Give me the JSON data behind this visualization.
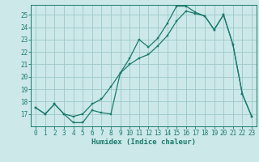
{
  "title": "",
  "xlabel": "Humidex (Indice chaleur)",
  "ylabel": "",
  "bg_color": "#cce8e8",
  "grid_color": "#9dc8c8",
  "line_color": "#1a7a6e",
  "xlim": [
    -0.5,
    23.5
  ],
  "ylim": [
    16.0,
    25.8
  ],
  "yticks": [
    17,
    18,
    19,
    20,
    21,
    22,
    23,
    24,
    25
  ],
  "xticks": [
    0,
    1,
    2,
    3,
    4,
    5,
    6,
    7,
    8,
    9,
    10,
    11,
    12,
    13,
    14,
    15,
    16,
    17,
    18,
    19,
    20,
    21,
    22,
    23
  ],
  "line1_x": [
    0,
    1,
    2,
    3,
    4,
    5,
    6,
    7,
    8,
    9,
    10,
    11,
    12,
    13,
    14,
    15,
    16,
    17,
    18,
    19,
    20,
    21,
    22,
    23
  ],
  "line1_y": [
    17.5,
    17.0,
    17.8,
    17.0,
    16.3,
    16.3,
    17.3,
    17.1,
    17.0,
    20.3,
    21.5,
    23.0,
    22.4,
    23.1,
    24.3,
    25.7,
    25.7,
    25.2,
    24.9,
    23.8,
    25.0,
    22.6,
    18.6,
    16.8
  ],
  "line2_x": [
    0,
    1,
    2,
    3,
    4,
    5,
    6,
    7,
    8,
    9,
    10,
    11,
    12,
    13,
    14,
    15,
    16,
    17,
    18,
    19,
    20,
    21,
    22,
    23
  ],
  "line2_y": [
    17.5,
    17.0,
    17.8,
    17.0,
    16.8,
    17.0,
    17.8,
    18.2,
    19.2,
    20.3,
    21.0,
    21.5,
    21.8,
    22.5,
    23.3,
    24.5,
    25.3,
    25.1,
    24.9,
    23.8,
    25.0,
    22.6,
    18.6,
    16.8
  ],
  "tick_fontsize": 5.5,
  "xlabel_fontsize": 6.5,
  "marker_size": 2.0,
  "line_width": 0.9
}
